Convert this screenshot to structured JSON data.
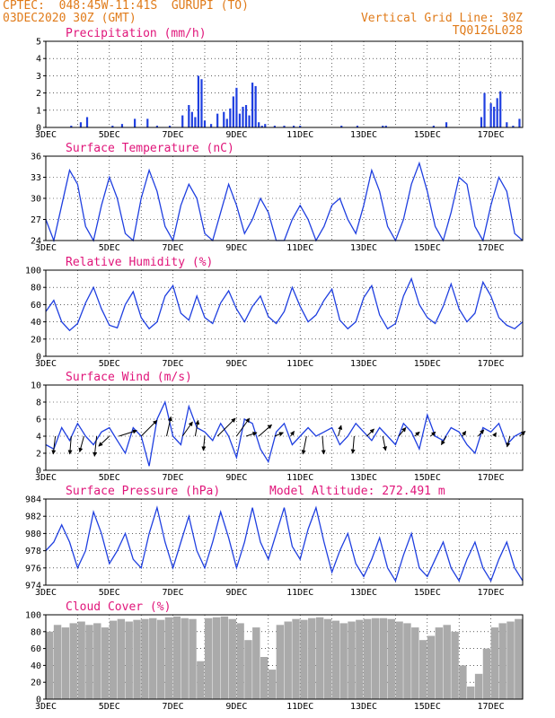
{
  "header": {
    "line1_left": "CPTEC:  048:45W-11:41S  GURUPI (TO)",
    "line2_left": "03DEC2020 30Z (GMT)",
    "line1_right": "Vertical Grid Line: 30Z",
    "line2_right": "TQ0126L028"
  },
  "x_dates": [
    "3DEC",
    "5DEC",
    "7DEC",
    "9DEC",
    "11DEC",
    "13DEC",
    "15DEC",
    "17DEC"
  ],
  "colors": {
    "header": "#e07b1a",
    "title": "#e0157a",
    "line": "#1f3fe0",
    "cloud": "#aaaaaa",
    "arrow": "#000000"
  },
  "chart_data": [
    {
      "type": "bar",
      "title": "Precipitation (mm/h)",
      "ylim": [
        0,
        5
      ],
      "yticks": [
        0,
        1,
        2,
        3,
        4,
        5
      ],
      "xlim": [
        0,
        15
      ],
      "x_tick_labels": [
        "3DEC",
        "5DEC",
        "7DEC",
        "9DEC",
        "11DEC",
        "13DEC",
        "15DEC",
        "17DEC"
      ],
      "x": [
        0.8,
        1.1,
        1.3,
        2.1,
        2.4,
        2.8,
        3.2,
        3.5,
        3.9,
        4.3,
        4.5,
        4.6,
        4.7,
        4.8,
        4.9,
        5.0,
        5.2,
        5.4,
        5.6,
        5.7,
        5.8,
        5.9,
        6.0,
        6.1,
        6.2,
        6.3,
        6.4,
        6.5,
        6.6,
        6.7,
        6.8,
        6.9,
        7.2,
        7.5,
        7.8,
        8.0,
        9.3,
        9.8,
        10.6,
        10.7,
        12.2,
        12.6,
        13.7,
        13.8,
        14.0,
        14.1,
        14.2,
        14.3,
        14.5,
        14.7,
        14.9
      ],
      "values": [
        0.1,
        0.3,
        0.6,
        0.1,
        0.2,
        0.5,
        0.5,
        0.1,
        0.1,
        0.7,
        1.3,
        0.9,
        0.6,
        3.0,
        2.8,
        0.4,
        0.2,
        0.8,
        0.9,
        0.5,
        1.1,
        1.8,
        2.3,
        0.8,
        1.2,
        1.3,
        0.7,
        2.6,
        2.4,
        0.3,
        0.1,
        0.2,
        0.1,
        0.1,
        0.1,
        0.1,
        0.1,
        0.1,
        0.1,
        0.1,
        0.1,
        0.3,
        0.6,
        2.0,
        1.4,
        1.2,
        1.7,
        2.1,
        0.3,
        0.1,
        0.5
      ]
    },
    {
      "type": "line",
      "title": "Surface Temperature (nC)",
      "ylim": [
        24,
        36
      ],
      "yticks": [
        24,
        27,
        30,
        33,
        36
      ],
      "xlim": [
        0,
        15
      ],
      "x_tick_labels": [
        "3DEC",
        "5DEC",
        "7DEC",
        "9DEC",
        "11DEC",
        "13DEC",
        "15DEC",
        "17DEC"
      ],
      "series": [
        {
          "x": [
            0,
            0.25,
            0.5,
            0.75,
            1.0,
            1.25,
            1.5,
            1.75,
            2.0,
            2.25,
            2.5,
            2.75,
            3.0,
            3.25,
            3.5,
            3.75,
            4.0,
            4.25,
            4.5,
            4.75,
            5.0,
            5.25,
            5.5,
            5.75,
            6.0,
            6.25,
            6.5,
            6.75,
            7.0,
            7.25,
            7.5,
            7.75,
            8.0,
            8.25,
            8.5,
            8.75,
            9.0,
            9.25,
            9.5,
            9.75,
            10.0,
            10.25,
            10.5,
            10.75,
            11.0,
            11.25,
            11.5,
            11.75,
            12.0,
            12.25,
            12.5,
            12.75,
            13.0,
            13.25,
            13.5,
            13.75,
            14.0,
            14.25,
            14.5,
            14.75,
            15.0
          ],
          "values": [
            27,
            24,
            29,
            34,
            32,
            26,
            24,
            29,
            33,
            30,
            25,
            24,
            30,
            34,
            31,
            26,
            24,
            29,
            32,
            30,
            25,
            24,
            28,
            32,
            29,
            25,
            27,
            30,
            28,
            24,
            24,
            27,
            29,
            27,
            24,
            26,
            29,
            30,
            27,
            25,
            29,
            34,
            31,
            26,
            24,
            27,
            32,
            35,
            31,
            26,
            24,
            28,
            33,
            32,
            26,
            24,
            29,
            33,
            31,
            25,
            24
          ]
        }
      ]
    },
    {
      "type": "line",
      "title": "Relative Humidity (%)",
      "ylim": [
        0,
        100
      ],
      "yticks": [
        0,
        20,
        40,
        60,
        80,
        100
      ],
      "xlim": [
        0,
        15
      ],
      "x_tick_labels": [
        "3DEC",
        "5DEC",
        "7DEC",
        "9DEC",
        "11DEC",
        "13DEC",
        "15DEC",
        "17DEC"
      ],
      "series": [
        {
          "x": [
            0,
            0.25,
            0.5,
            0.75,
            1.0,
            1.25,
            1.5,
            1.75,
            2.0,
            2.25,
            2.5,
            2.75,
            3.0,
            3.25,
            3.5,
            3.75,
            4.0,
            4.25,
            4.5,
            4.75,
            5.0,
            5.25,
            5.5,
            5.75,
            6.0,
            6.25,
            6.5,
            6.75,
            7.0,
            7.25,
            7.5,
            7.75,
            8.0,
            8.25,
            8.5,
            8.75,
            9.0,
            9.25,
            9.5,
            9.75,
            10.0,
            10.25,
            10.5,
            10.75,
            11.0,
            11.25,
            11.5,
            11.75,
            12.0,
            12.25,
            12.5,
            12.75,
            13.0,
            13.25,
            13.5,
            13.75,
            14.0,
            14.25,
            14.5,
            14.75,
            15.0
          ],
          "values": [
            52,
            65,
            40,
            30,
            38,
            62,
            80,
            55,
            36,
            33,
            60,
            75,
            45,
            32,
            40,
            70,
            82,
            50,
            42,
            70,
            45,
            38,
            62,
            76,
            55,
            40,
            58,
            70,
            46,
            38,
            52,
            80,
            58,
            40,
            48,
            65,
            78,
            42,
            32,
            40,
            68,
            82,
            48,
            32,
            38,
            70,
            90,
            60,
            45,
            38,
            58,
            84,
            55,
            40,
            50,
            86,
            70,
            45,
            36,
            32,
            40
          ]
        }
      ]
    },
    {
      "type": "line",
      "title": "Surface Wind (m/s)",
      "ylim": [
        0,
        10
      ],
      "yticks": [
        0,
        2,
        4,
        6,
        8,
        10
      ],
      "xlim": [
        0,
        15
      ],
      "x_tick_labels": [
        "3DEC",
        "5DEC",
        "7DEC",
        "9DEC",
        "11DEC",
        "13DEC",
        "15DEC",
        "17DEC"
      ],
      "series": [
        {
          "x": [
            0,
            0.25,
            0.5,
            0.75,
            1.0,
            1.25,
            1.5,
            1.75,
            2.0,
            2.25,
            2.5,
            2.75,
            3.0,
            3.25,
            3.5,
            3.75,
            4.0,
            4.25,
            4.5,
            4.75,
            5.0,
            5.25,
            5.5,
            5.75,
            6.0,
            6.25,
            6.5,
            6.75,
            7.0,
            7.25,
            7.5,
            7.75,
            8.0,
            8.25,
            8.5,
            8.75,
            9.0,
            9.25,
            9.5,
            9.75,
            10.0,
            10.25,
            10.5,
            10.75,
            11.0,
            11.25,
            11.5,
            11.75,
            12.0,
            12.25,
            12.5,
            12.75,
            13.0,
            13.25,
            13.5,
            13.75,
            14.0,
            14.25,
            14.5,
            14.75,
            15.0
          ],
          "values": [
            3.0,
            2.5,
            5.0,
            3.5,
            5.5,
            4.0,
            3.0,
            4.5,
            5.0,
            3.5,
            2.0,
            5.0,
            4.0,
            0.5,
            6.0,
            8.0,
            4.0,
            3.0,
            7.5,
            5.0,
            4.5,
            3.5,
            5.5,
            4.0,
            1.5,
            6.0,
            5.5,
            2.5,
            1.0,
            4.5,
            5.5,
            3.0,
            4.0,
            5.0,
            4.0,
            4.5,
            5.0,
            3.0,
            4.0,
            5.5,
            4.5,
            3.5,
            5.0,
            4.0,
            3.0,
            5.5,
            4.5,
            2.5,
            6.5,
            4.0,
            3.5,
            5.0,
            4.5,
            3.0,
            2.0,
            5.0,
            4.5,
            5.5,
            3.0,
            4.0,
            4.5
          ]
        }
      ],
      "wind_arrows": [
        {
          "x": 0.3,
          "u": -0.3,
          "v": -2.5
        },
        {
          "x": 0.8,
          "u": -0.2,
          "v": -2.5
        },
        {
          "x": 1.2,
          "u": -0.6,
          "v": -2.2
        },
        {
          "x": 1.6,
          "u": -0.3,
          "v": -2.8
        },
        {
          "x": 2.0,
          "u": -1.5,
          "v": -1.4
        },
        {
          "x": 2.3,
          "u": 2.5,
          "v": 0.8
        },
        {
          "x": 3.0,
          "u": 2.2,
          "v": 2.2
        },
        {
          "x": 3.8,
          "u": 0.6,
          "v": 2.7
        },
        {
          "x": 4.3,
          "u": 1.4,
          "v": 2.0
        },
        {
          "x": 4.7,
          "u": 0.4,
          "v": 2.2
        },
        {
          "x": 5.0,
          "u": -0.2,
          "v": -2.0
        },
        {
          "x": 5.4,
          "u": 2.5,
          "v": 2.5
        },
        {
          "x": 6.0,
          "u": 1.8,
          "v": 2.5
        },
        {
          "x": 6.3,
          "u": 1.5,
          "v": 0.5
        },
        {
          "x": 6.7,
          "u": 1.8,
          "v": 1.6
        },
        {
          "x": 7.2,
          "u": 1.2,
          "v": 0.5
        },
        {
          "x": 7.7,
          "u": 0.5,
          "v": 0.7
        },
        {
          "x": 8.2,
          "u": -0.5,
          "v": -2.5
        },
        {
          "x": 8.7,
          "u": 0.2,
          "v": -2.5
        },
        {
          "x": 9.2,
          "u": 0.4,
          "v": 1.5
        },
        {
          "x": 9.7,
          "u": -0.2,
          "v": -2.4
        },
        {
          "x": 10.1,
          "u": 1.0,
          "v": 1.0
        },
        {
          "x": 10.6,
          "u": 0.4,
          "v": -2.0
        },
        {
          "x": 11.1,
          "u": 1.0,
          "v": 1.2
        },
        {
          "x": 11.6,
          "u": 0.7,
          "v": 0.6
        },
        {
          "x": 12.1,
          "u": 0.7,
          "v": 0.6
        },
        {
          "x": 12.6,
          "u": -0.7,
          "v": -1.2
        },
        {
          "x": 13.1,
          "u": 0.5,
          "v": 0.7
        },
        {
          "x": 13.6,
          "u": 0.8,
          "v": 0.9
        },
        {
          "x": 14.1,
          "u": 0.3,
          "v": 0.5
        },
        {
          "x": 14.6,
          "u": -0.4,
          "v": -1.5
        },
        {
          "x": 14.9,
          "u": 0.8,
          "v": 0.7
        }
      ]
    },
    {
      "type": "line",
      "title": "Surface Pressure (hPa)",
      "annotation": "Model Altitude: 272.491 m",
      "ylim": [
        974,
        984
      ],
      "yticks": [
        974,
        976,
        978,
        980,
        982,
        984
      ],
      "xlim": [
        0,
        15
      ],
      "x_tick_labels": [
        "3DEC",
        "5DEC",
        "7DEC",
        "9DEC",
        "11DEC",
        "13DEC",
        "15DEC",
        "17DEC"
      ],
      "series": [
        {
          "x": [
            0,
            0.25,
            0.5,
            0.75,
            1.0,
            1.25,
            1.5,
            1.75,
            2.0,
            2.25,
            2.5,
            2.75,
            3.0,
            3.25,
            3.5,
            3.75,
            4.0,
            4.25,
            4.5,
            4.75,
            5.0,
            5.25,
            5.5,
            5.75,
            6.0,
            6.25,
            6.5,
            6.75,
            7.0,
            7.25,
            7.5,
            7.75,
            8.0,
            8.25,
            8.5,
            8.75,
            9.0,
            9.25,
            9.5,
            9.75,
            10.0,
            10.25,
            10.5,
            10.75,
            11.0,
            11.25,
            11.5,
            11.75,
            12.0,
            12.25,
            12.5,
            12.75,
            13.0,
            13.25,
            13.5,
            13.75,
            14.0,
            14.25,
            14.5,
            14.75,
            15.0
          ],
          "values": [
            978,
            979,
            981,
            979,
            976,
            978,
            982.5,
            980,
            976.5,
            978,
            980,
            977,
            976,
            980,
            983,
            979,
            976,
            979,
            982,
            978,
            976,
            979,
            982.5,
            979.5,
            976,
            979,
            983,
            979,
            977,
            980,
            983,
            978.5,
            977,
            980.5,
            983,
            979,
            975.5,
            978,
            980,
            976.5,
            975,
            977,
            979.5,
            976,
            974.5,
            977.5,
            980,
            976,
            975,
            977,
            979,
            976,
            974.5,
            977,
            979,
            976,
            974.5,
            977,
            979,
            976,
            974.5
          ]
        }
      ]
    },
    {
      "type": "bar",
      "title": "Cloud Cover (%)",
      "ylim": [
        0,
        100
      ],
      "yticks": [
        0,
        20,
        40,
        60,
        80,
        100
      ],
      "xlim": [
        0,
        15
      ],
      "x_tick_labels": [
        "3DEC",
        "5DEC",
        "7DEC",
        "9DEC",
        "11DEC",
        "13DEC",
        "15DEC",
        "17DEC"
      ],
      "x": [
        0,
        0.25,
        0.5,
        0.75,
        1.0,
        1.25,
        1.5,
        1.75,
        2.0,
        2.25,
        2.5,
        2.75,
        3.0,
        3.25,
        3.5,
        3.75,
        4.0,
        4.25,
        4.5,
        4.75,
        5.0,
        5.25,
        5.5,
        5.75,
        6.0,
        6.25,
        6.5,
        6.75,
        7.0,
        7.25,
        7.5,
        7.75,
        8.0,
        8.25,
        8.5,
        8.75,
        9.0,
        9.25,
        9.5,
        9.75,
        10.0,
        10.25,
        10.5,
        10.75,
        11.0,
        11.25,
        11.5,
        11.75,
        12.0,
        12.25,
        12.5,
        12.75,
        13.0,
        13.25,
        13.5,
        13.75,
        14.0,
        14.25,
        14.5,
        14.75
      ],
      "values": [
        80,
        88,
        85,
        90,
        92,
        88,
        90,
        85,
        93,
        95,
        92,
        94,
        95,
        96,
        94,
        97,
        98,
        96,
        95,
        45,
        96,
        97,
        98,
        95,
        90,
        70,
        85,
        50,
        35,
        88,
        92,
        95,
        94,
        96,
        97,
        95,
        93,
        90,
        92,
        94,
        95,
        96,
        96,
        95,
        92,
        90,
        85,
        70,
        75,
        85,
        88,
        80,
        40,
        15,
        30,
        60,
        85,
        90,
        92,
        95
      ]
    }
  ]
}
